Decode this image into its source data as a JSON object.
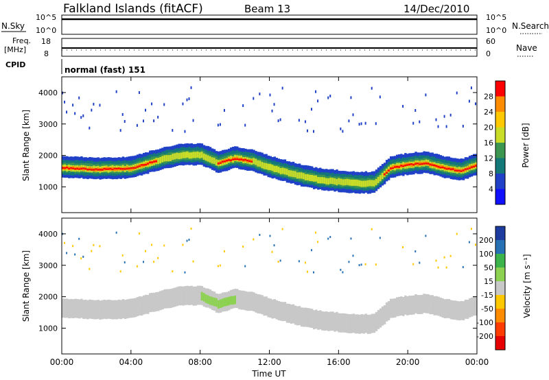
{
  "header": {
    "station": "Falkland Islands (fitACF)",
    "beam": "Beam 13",
    "date": "14/Dec/2010"
  },
  "strips": {
    "nsky_label": "N.Sky",
    "nsky_ticks": [
      "10^5",
      "10^0"
    ],
    "nsearch_label": "N.Search",
    "nsearch_ticks": [
      "10^5",
      "10^0"
    ],
    "freq_label": "Freq.",
    "freq_unit": "[MHz]",
    "freq_ticks": [
      "18",
      "8"
    ],
    "nave_label": "Nave",
    "nave_ticks": [
      "60",
      "0"
    ],
    "cpid_label": "CPID",
    "cpid_value": "normal (fast) 151"
  },
  "chart_data": [
    {
      "type": "heatmap",
      "panel": "power",
      "ylabel": "Slant Range [km]",
      "yticks": [
        "4000",
        "3000",
        "2000",
        "1000"
      ],
      "ylim": [
        180,
        4500
      ],
      "colorbar_label": "Power [dB]",
      "colorbar_ticks": [
        "28",
        "24",
        "20",
        "16",
        "12",
        "8",
        "4"
      ],
      "colorbar_colors": [
        "#ff0000",
        "#ff8c00",
        "#ffc800",
        "#c8dc28",
        "#3c9650",
        "#147878",
        "#2040c8",
        "#1010ff"
      ],
      "echo_band": {
        "time_h": [
          0,
          2,
          4,
          5,
          6,
          7,
          8,
          9,
          10,
          11,
          12,
          13,
          14,
          15,
          16,
          17,
          18,
          19,
          20,
          21,
          22,
          23,
          24
        ],
        "range_km": [
          1600,
          1550,
          1580,
          1750,
          1900,
          2000,
          2000,
          1750,
          1900,
          1800,
          1600,
          1450,
          1300,
          1200,
          1150,
          1100,
          1100,
          1600,
          1700,
          1750,
          1600,
          1500,
          1700
        ]
      }
    },
    {
      "type": "heatmap",
      "panel": "velocity",
      "ylabel": "Slant Range [km]",
      "yticks": [
        "4000",
        "3000",
        "2000",
        "1000"
      ],
      "ylim": [
        180,
        4500
      ],
      "colorbar_label": "Velocity [m s⁻¹]",
      "colorbar_ticks": [
        "200",
        "100",
        "50",
        "15",
        "-15",
        "-50",
        "-100",
        "-200"
      ],
      "colorbar_colors": [
        "#1e3ca0",
        "#2870b4",
        "#3cb44b",
        "#8cd250",
        "#c8c8c8",
        "#ffc800",
        "#ff8c00",
        "#ff3c00",
        "#e60000"
      ]
    }
  ],
  "xaxis": {
    "label": "Time UT",
    "ticks": [
      "00:00",
      "04:00",
      "08:00",
      "12:00",
      "16:00",
      "20:00",
      "00:00"
    ]
  }
}
